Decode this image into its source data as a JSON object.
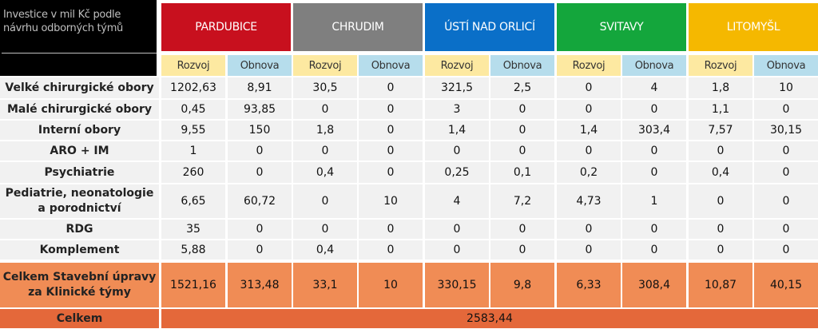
{
  "corner_text": "Investice v mil Kč podle návrhu odborných týmů",
  "regions": [
    {
      "name": "PARDUBICE",
      "color": "#c8101e"
    },
    {
      "name": "CHRUDIM",
      "color": "#7f7f7f"
    },
    {
      "name": "ÚSTÍ NAD ORLICÍ",
      "color": "#0a6fc8"
    },
    {
      "name": "SVITAVY",
      "color": "#14a63c"
    },
    {
      "name": "LITOMYŠL",
      "color": "#f5b800"
    }
  ],
  "subheaders": [
    "Rozvoj",
    "Obnova"
  ],
  "rows": [
    {
      "label": "Velké chirurgické obory",
      "values": [
        "1202,63",
        "8,91",
        "30,5",
        "0",
        "321,5",
        "2,5",
        "0",
        "4",
        "1,8",
        "10"
      ]
    },
    {
      "label": "Malé chirurgické obory",
      "values": [
        "0,45",
        "93,85",
        "0",
        "0",
        "3",
        "0",
        "0",
        "0",
        "1,1",
        "0"
      ]
    },
    {
      "label": "Interní obory",
      "values": [
        "9,55",
        "150",
        "1,8",
        "0",
        "1,4",
        "0",
        "1,4",
        "303,4",
        "7,57",
        "30,15"
      ]
    },
    {
      "label": "ARO + IM",
      "values": [
        "1",
        "0",
        "0",
        "0",
        "0",
        "0",
        "0",
        "0",
        "0",
        "0"
      ]
    },
    {
      "label": "Psychiatrie",
      "values": [
        "260",
        "0",
        "0,4",
        "0",
        "0,25",
        "0,1",
        "0,2",
        "0",
        "0,4",
        "0"
      ]
    },
    {
      "label": "Pediatrie, neonatologie a porodnictví",
      "values": [
        "6,65",
        "60,72",
        "0",
        "10",
        "4",
        "7,2",
        "4,73",
        "1",
        "0",
        "0"
      ]
    },
    {
      "label": "RDG",
      "values": [
        "35",
        "0",
        "0",
        "0",
        "0",
        "0",
        "0",
        "0",
        "0",
        "0"
      ]
    },
    {
      "label": "Komplement",
      "values": [
        "5,88",
        "0",
        "0,4",
        "0",
        "0",
        "0",
        "0",
        "0",
        "0",
        "0"
      ]
    }
  ],
  "total_row": {
    "label": "Celkem Stavební úpravy za Klinické týmy",
    "values": [
      "1521,16",
      "313,48",
      "33,1",
      "10",
      "330,15",
      "9,8",
      "6,33",
      "308,4",
      "10,87",
      "40,15"
    ]
  },
  "grand_total": {
    "label": "Celkem",
    "value": "2583,44"
  }
}
